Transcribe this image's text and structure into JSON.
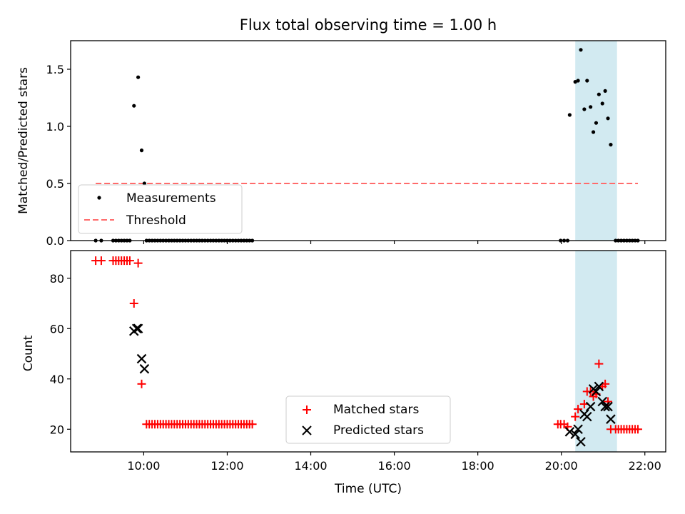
{
  "figure": {
    "title": "Flux total observing time = 1.00 h"
  },
  "colors": {
    "measurement": "#000000",
    "threshold": "#ff6b6b",
    "matched": "#ff0000",
    "predicted": "#000000",
    "shade": "#add8e6"
  },
  "chart_data": [
    {
      "type": "scatter",
      "panel": "top",
      "title": "Flux total observing time = 1.00 h",
      "xlabel": "",
      "ylabel": "Matched/Predicted stars",
      "xlim": [
        "08:15",
        "22:30"
      ],
      "ylim": [
        0,
        1.75
      ],
      "yticks": [
        0.0,
        0.5,
        1.0,
        1.5
      ],
      "ytick_labels": [
        "0.0",
        "0.5",
        "1.0",
        "1.5"
      ],
      "grid": false,
      "legend_placement": "lower-left",
      "shaded_interval": [
        "20:20",
        "21:20"
      ],
      "series": [
        {
          "name": "Measurements",
          "kind": "scatter",
          "points": [
            [
              "08:51",
              0
            ],
            [
              "08:59",
              0
            ],
            [
              "09:16",
              0
            ],
            [
              "09:20",
              0
            ],
            [
              "09:24",
              0
            ],
            [
              "09:28",
              0
            ],
            [
              "09:32",
              0
            ],
            [
              "09:36",
              0
            ],
            [
              "09:40",
              0
            ],
            [
              "09:46",
              1.18
            ],
            [
              "09:52",
              1.43
            ],
            [
              "09:57",
              0.79
            ],
            [
              "10:01",
              0.5
            ],
            [
              "10:04",
              0
            ],
            [
              "10:08",
              0
            ],
            [
              "10:12",
              0
            ],
            [
              "10:16",
              0
            ],
            [
              "10:20",
              0
            ],
            [
              "10:24",
              0
            ],
            [
              "10:28",
              0
            ],
            [
              "10:32",
              0
            ],
            [
              "10:36",
              0
            ],
            [
              "10:40",
              0
            ],
            [
              "10:44",
              0
            ],
            [
              "10:48",
              0
            ],
            [
              "10:52",
              0
            ],
            [
              "10:56",
              0
            ],
            [
              "11:00",
              0
            ],
            [
              "11:04",
              0
            ],
            [
              "11:08",
              0
            ],
            [
              "11:12",
              0
            ],
            [
              "11:16",
              0
            ],
            [
              "11:20",
              0
            ],
            [
              "11:24",
              0
            ],
            [
              "11:28",
              0
            ],
            [
              "11:32",
              0
            ],
            [
              "11:36",
              0
            ],
            [
              "11:40",
              0
            ],
            [
              "11:44",
              0
            ],
            [
              "11:48",
              0
            ],
            [
              "11:52",
              0
            ],
            [
              "11:56",
              0
            ],
            [
              "12:00",
              0
            ],
            [
              "12:04",
              0
            ],
            [
              "12:08",
              0
            ],
            [
              "12:12",
              0
            ],
            [
              "12:16",
              0
            ],
            [
              "12:20",
              0
            ],
            [
              "12:24",
              0
            ],
            [
              "12:28",
              0
            ],
            [
              "12:32",
              0
            ],
            [
              "12:36",
              0
            ],
            [
              "19:59",
              0
            ],
            [
              "20:04",
              0
            ],
            [
              "20:09",
              0
            ],
            [
              "20:12",
              1.1
            ],
            [
              "20:20",
              1.39
            ],
            [
              "20:24",
              1.4
            ],
            [
              "20:28",
              1.67
            ],
            [
              "20:33",
              1.15
            ],
            [
              "20:37",
              1.4
            ],
            [
              "20:42",
              1.17
            ],
            [
              "20:46",
              0.95
            ],
            [
              "20:50",
              1.03
            ],
            [
              "20:54",
              1.28
            ],
            [
              "20:59",
              1.2
            ],
            [
              "21:03",
              1.31
            ],
            [
              "21:07",
              1.07
            ],
            [
              "21:11",
              0.84
            ],
            [
              "21:18",
              0
            ],
            [
              "21:22",
              0
            ],
            [
              "21:26",
              0
            ],
            [
              "21:30",
              0
            ],
            [
              "21:34",
              0
            ],
            [
              "21:38",
              0
            ],
            [
              "21:42",
              0
            ],
            [
              "21:46",
              0
            ],
            [
              "21:50",
              0
            ]
          ]
        },
        {
          "name": "Threshold",
          "kind": "dashed-line",
          "points": [
            [
              "08:51",
              0.5
            ],
            [
              "21:50",
              0.5
            ]
          ]
        }
      ]
    },
    {
      "type": "scatter",
      "panel": "bottom",
      "xlabel": "Time (UTC)",
      "ylabel": "Count",
      "xlim": [
        "08:15",
        "22:30"
      ],
      "ylim": [
        11,
        91
      ],
      "xticks": [
        "10:00",
        "12:00",
        "14:00",
        "16:00",
        "18:00",
        "20:00",
        "22:00"
      ],
      "yticks": [
        20,
        40,
        60,
        80
      ],
      "ytick_labels": [
        "20",
        "40",
        "60",
        "80"
      ],
      "grid": false,
      "legend_placement": "lower-center",
      "shaded_interval": [
        "20:20",
        "21:20"
      ],
      "series": [
        {
          "name": "Matched stars",
          "kind": "plus",
          "points": [
            [
              "08:51",
              87
            ],
            [
              "08:59",
              87
            ],
            [
              "09:16",
              87
            ],
            [
              "09:20",
              87
            ],
            [
              "09:24",
              87
            ],
            [
              "09:28",
              87
            ],
            [
              "09:32",
              87
            ],
            [
              "09:36",
              87
            ],
            [
              "09:40",
              87
            ],
            [
              "09:46",
              70
            ],
            [
              "09:52",
              86
            ],
            [
              "09:57",
              38
            ],
            [
              "10:04",
              22
            ],
            [
              "10:08",
              22
            ],
            [
              "10:12",
              22
            ],
            [
              "10:16",
              22
            ],
            [
              "10:20",
              22
            ],
            [
              "10:24",
              22
            ],
            [
              "10:28",
              22
            ],
            [
              "10:32",
              22
            ],
            [
              "10:36",
              22
            ],
            [
              "10:40",
              22
            ],
            [
              "10:44",
              22
            ],
            [
              "10:48",
              22
            ],
            [
              "10:52",
              22
            ],
            [
              "10:56",
              22
            ],
            [
              "11:00",
              22
            ],
            [
              "11:04",
              22
            ],
            [
              "11:08",
              22
            ],
            [
              "11:12",
              22
            ],
            [
              "11:16",
              22
            ],
            [
              "11:20",
              22
            ],
            [
              "11:24",
              22
            ],
            [
              "11:28",
              22
            ],
            [
              "11:32",
              22
            ],
            [
              "11:36",
              22
            ],
            [
              "11:40",
              22
            ],
            [
              "11:44",
              22
            ],
            [
              "11:48",
              22
            ],
            [
              "11:52",
              22
            ],
            [
              "11:56",
              22
            ],
            [
              "12:00",
              22
            ],
            [
              "12:04",
              22
            ],
            [
              "12:08",
              22
            ],
            [
              "12:12",
              22
            ],
            [
              "12:16",
              22
            ],
            [
              "12:20",
              22
            ],
            [
              "12:24",
              22
            ],
            [
              "12:28",
              22
            ],
            [
              "12:32",
              22
            ],
            [
              "12:36",
              22
            ],
            [
              "19:55",
              22
            ],
            [
              "19:59",
              22
            ],
            [
              "20:04",
              22
            ],
            [
              "20:09",
              21
            ],
            [
              "20:20",
              25
            ],
            [
              "20:24",
              28
            ],
            [
              "20:33",
              30
            ],
            [
              "20:37",
              35
            ],
            [
              "20:42",
              35
            ],
            [
              "20:46",
              33
            ],
            [
              "20:50",
              34
            ],
            [
              "20:54",
              46
            ],
            [
              "20:59",
              37
            ],
            [
              "21:03",
              38
            ],
            [
              "21:07",
              31
            ],
            [
              "21:11",
              20
            ],
            [
              "21:18",
              20
            ],
            [
              "21:22",
              20
            ],
            [
              "21:26",
              20
            ],
            [
              "21:30",
              20
            ],
            [
              "21:34",
              20
            ],
            [
              "21:38",
              20
            ],
            [
              "21:42",
              20
            ],
            [
              "21:46",
              20
            ],
            [
              "21:50",
              20
            ]
          ]
        },
        {
          "name": "Predicted stars",
          "kind": "x",
          "points": [
            [
              "09:46",
              59
            ],
            [
              "09:50",
              60
            ],
            [
              "09:52",
              60
            ],
            [
              "09:57",
              48
            ],
            [
              "10:01",
              44
            ],
            [
              "20:12",
              19
            ],
            [
              "20:20",
              18
            ],
            [
              "20:24",
              20
            ],
            [
              "20:28",
              15
            ],
            [
              "20:33",
              26
            ],
            [
              "20:37",
              25
            ],
            [
              "20:42",
              29
            ],
            [
              "20:46",
              36
            ],
            [
              "20:50",
              35
            ],
            [
              "20:54",
              37
            ],
            [
              "20:59",
              31
            ],
            [
              "21:03",
              29
            ],
            [
              "21:07",
              29
            ],
            [
              "21:11",
              24
            ]
          ]
        }
      ]
    }
  ]
}
